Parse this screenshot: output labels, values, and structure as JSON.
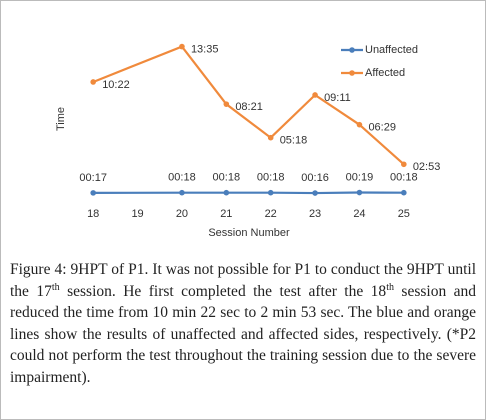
{
  "chart_data": {
    "type": "line",
    "x_label": "Session Number",
    "y_label": "Time",
    "xlim": [
      17.5,
      25.5
    ],
    "xticks": [
      18,
      19,
      20,
      21,
      22,
      23,
      24,
      25
    ],
    "ylim": [
      0,
      900
    ],
    "legend": "top-right",
    "series": [
      {
        "name": "Unaffected",
        "color": "#4a7ebb",
        "x": [
          18,
          20,
          21,
          22,
          23,
          24,
          25
        ],
        "values": [
          17,
          18,
          18,
          18,
          16,
          19,
          18
        ],
        "value_labels": [
          "00:17",
          "00:18",
          "00:18",
          "00:18",
          "00:16",
          "00:19",
          "00:18"
        ]
      },
      {
        "name": "Affected",
        "color": "#f08a3c",
        "x": [
          18,
          20,
          21,
          22,
          23,
          24,
          25
        ],
        "values": [
          622,
          815,
          501,
          318,
          551,
          389,
          173
        ],
        "value_labels": [
          "10:22",
          "13:35",
          "08:21",
          "05:18",
          "09:11",
          "06:29",
          "02:53"
        ]
      }
    ],
    "caption": {
      "label": "Figure 4:",
      "text": [
        "9HPT of P1. It was not possible for P1 to conduct the 9HPT until the 17",
        "th",
        " session. He first completed the test after the 18",
        "th",
        " session and reduced the time from 10 min 22 sec to 2 min 53 sec. The blue and orange lines show the results of unaffected and affected sides, respectively. (*P2 could not perform the test throughout the training session due to the severe impairment)."
      ]
    }
  }
}
